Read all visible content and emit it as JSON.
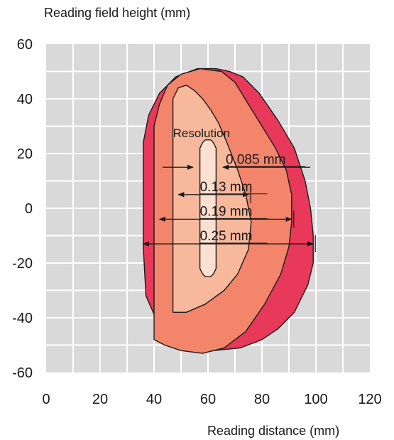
{
  "chart_data": {
    "type": "area",
    "xlabel": "Reading distance (mm)",
    "ylabel": "Reading field height (mm)",
    "xlim": [
      0,
      120
    ],
    "ylim": [
      -60,
      60
    ],
    "x_ticks": [
      "0",
      "20",
      "40",
      "60",
      "80",
      "100",
      "120"
    ],
    "y_ticks": [
      "60",
      "40",
      "20",
      "0",
      "-20",
      "-40",
      "-60"
    ],
    "grid": true,
    "resolution_label": "Resolution",
    "zones": [
      {
        "label": "0.25 mm",
        "color": "#e8395a",
        "range_at_center": [
          36,
          99
        ],
        "outline": [
          [
            36,
            -14
          ],
          [
            36,
            24
          ],
          [
            38,
            34
          ],
          [
            42,
            42
          ],
          [
            48,
            48
          ],
          [
            56,
            51
          ],
          [
            63,
            51
          ],
          [
            68,
            50
          ],
          [
            73,
            48
          ],
          [
            79,
            42
          ],
          [
            86,
            32
          ],
          [
            92,
            22
          ],
          [
            96,
            10
          ],
          [
            98,
            0
          ],
          [
            99,
            -10
          ],
          [
            99,
            -20
          ],
          [
            97,
            -28
          ],
          [
            92,
            -38
          ],
          [
            86,
            -44
          ],
          [
            80,
            -48
          ],
          [
            72,
            -51
          ],
          [
            62,
            -52
          ],
          [
            54,
            -51
          ],
          [
            47,
            -48
          ],
          [
            41,
            -41
          ],
          [
            37,
            -32
          ]
        ]
      },
      {
        "label": "0.19 mm",
        "color": "#f2856a",
        "range_at_center": [
          40,
          91
        ],
        "outline": [
          [
            40,
            -48
          ],
          [
            40,
            30
          ],
          [
            42,
            38
          ],
          [
            45,
            45
          ],
          [
            50,
            49
          ],
          [
            57,
            51
          ],
          [
            65,
            50
          ],
          [
            70,
            46
          ],
          [
            75,
            38
          ],
          [
            80,
            30
          ],
          [
            85,
            22
          ],
          [
            89,
            14
          ],
          [
            91,
            5
          ],
          [
            91,
            -5
          ],
          [
            90,
            -14
          ],
          [
            87,
            -24
          ],
          [
            81,
            -35
          ],
          [
            74,
            -45
          ],
          [
            66,
            -51
          ],
          [
            58,
            -53
          ],
          [
            50,
            -52
          ],
          [
            44,
            -50
          ]
        ]
      },
      {
        "label": "0.13 mm",
        "color": "#f8b89c",
        "range_at_center": [
          44,
          75
        ],
        "outline": [
          [
            47,
            -38
          ],
          [
            47,
            40
          ],
          [
            49,
            44
          ],
          [
            52,
            45
          ],
          [
            55,
            43
          ],
          [
            58,
            40
          ],
          [
            61,
            36
          ],
          [
            64,
            31
          ],
          [
            67,
            24
          ],
          [
            71,
            14
          ],
          [
            74,
            5
          ],
          [
            76,
            -5
          ],
          [
            75,
            -15
          ],
          [
            71,
            -24
          ],
          [
            66,
            -30
          ],
          [
            59,
            -35
          ],
          [
            52,
            -38
          ]
        ]
      },
      {
        "label": "0.085 mm",
        "color": "#fde0d2",
        "range_at_center": [
          54,
          65
        ],
        "outline": [
          [
            57,
            -22
          ],
          [
            57,
            22
          ],
          [
            58,
            24
          ],
          [
            59,
            25
          ],
          [
            61,
            25
          ],
          [
            62,
            24
          ],
          [
            63,
            22
          ],
          [
            63,
            -22
          ],
          [
            62,
            -24
          ],
          [
            61,
            -25
          ],
          [
            59,
            -25
          ],
          [
            58,
            -24
          ]
        ]
      }
    ],
    "annotations": [
      {
        "label": "0.085 mm",
        "x_from": 55,
        "x_to": 65,
        "y": 15
      },
      {
        "label": "0.13 mm",
        "x_from": 49,
        "x_to": 75,
        "y": 5
      },
      {
        "label": "0.19 mm",
        "x_from": 42,
        "x_to": 91,
        "y": -4
      },
      {
        "label": "0.25 mm",
        "x_from": 36,
        "x_to": 99,
        "y": -13
      }
    ]
  }
}
